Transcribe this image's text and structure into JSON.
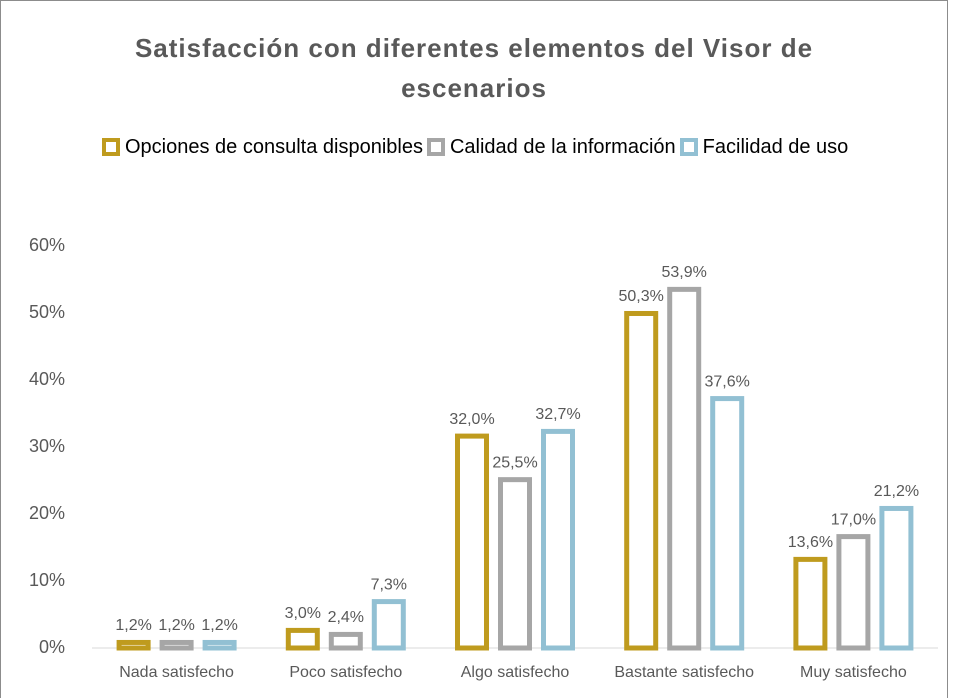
{
  "chart_data": {
    "type": "bar",
    "title": "Satisfacción con diferentes elementos del Visor de escenarios",
    "categories": [
      "Nada satisfecho",
      "Poco satisfecho",
      "Algo satisfecho",
      "Bastante satisfecho",
      "Muy satisfecho"
    ],
    "series": [
      {
        "name": "Opciones de consulta disponibles",
        "color": "#bf9b1e",
        "values": [
          1.2,
          3.0,
          32.0,
          50.3,
          13.6
        ],
        "value_labels": [
          "1,2%",
          "3,0%",
          "32,0%",
          "50,3%",
          "13,6%"
        ]
      },
      {
        "name": "Calidad de la información",
        "color": "#a6a6a6",
        "values": [
          1.2,
          2.4,
          25.5,
          53.9,
          17.0
        ],
        "value_labels": [
          "1,2%",
          "2,4%",
          "25,5%",
          "53,9%",
          "17,0%"
        ]
      },
      {
        "name": "Facilidad de uso",
        "color": "#92c0d3",
        "values": [
          1.2,
          7.3,
          32.7,
          37.6,
          21.2
        ],
        "value_labels": [
          "1,2%",
          "7,3%",
          "32,7%",
          "37,6%",
          "21,2%"
        ]
      }
    ],
    "ylim": [
      0,
      60
    ],
    "yticks": [
      {
        "value": 0,
        "label": "0%"
      },
      {
        "value": 10,
        "label": "10%"
      },
      {
        "value": 20,
        "label": "20%"
      },
      {
        "value": 30,
        "label": "30%"
      },
      {
        "value": 40,
        "label": "40%"
      },
      {
        "value": 50,
        "label": "50%"
      },
      {
        "value": 60,
        "label": "60%"
      }
    ],
    "grid": false
  }
}
